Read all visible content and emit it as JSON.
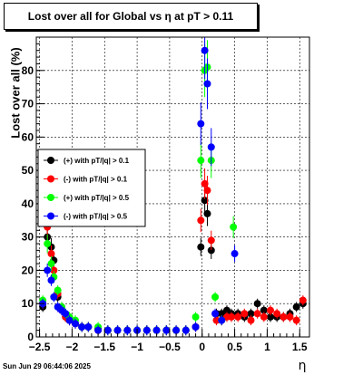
{
  "footer_timestamp": "Sun Jun 29 06:44:06 2025",
  "chart_data": {
    "type": "scatter",
    "title": "Lost over all for Global vs    η at pT > 0.11",
    "xlabel": "η",
    "ylabel": "Lost over all (%)",
    "xlim": [
      -2.55,
      1.65
    ],
    "ylim": [
      0,
      90
    ],
    "xticks": [
      -2.5,
      -2,
      -1.5,
      -1,
      -0.5,
      0,
      0.5,
      1,
      1.5
    ],
    "xtick_labels": [
      "−2.5",
      "−2",
      "−1.5",
      "−1",
      "−0.5",
      "0",
      "0.5",
      "1",
      "1.5"
    ],
    "yticks": [
      0,
      10,
      20,
      30,
      40,
      50,
      60,
      70,
      80
    ],
    "grid": true,
    "legend_position": "middle-left",
    "series": [
      {
        "name": "(+) with pT/|q| > 0.1",
        "color": "#000000",
        "points": [
          [
            -2.45,
            9
          ],
          [
            -2.38,
            30
          ],
          [
            -2.32,
            27
          ],
          [
            -2.28,
            23
          ],
          [
            -2.22,
            12
          ],
          [
            -2.16,
            9
          ],
          [
            -2.1,
            6
          ],
          [
            -2.04,
            5
          ],
          [
            -1.95,
            4
          ],
          [
            -1.85,
            3
          ],
          [
            -1.75,
            3
          ],
          [
            -1.6,
            2.5
          ],
          [
            -1.45,
            2
          ],
          [
            -1.3,
            2
          ],
          [
            -1.15,
            2
          ],
          [
            -1.0,
            2
          ],
          [
            -0.85,
            2
          ],
          [
            -0.7,
            2
          ],
          [
            -0.55,
            2
          ],
          [
            -0.4,
            2
          ],
          [
            -0.25,
            2
          ],
          [
            -0.1,
            3
          ],
          [
            -0.02,
            27
          ],
          [
            0.04,
            41
          ],
          [
            0.08,
            37
          ],
          [
            0.14,
            26
          ],
          [
            0.22,
            7
          ],
          [
            0.3,
            7
          ],
          [
            0.38,
            8
          ],
          [
            0.45,
            7
          ],
          [
            0.55,
            7
          ],
          [
            0.65,
            6
          ],
          [
            0.75,
            7
          ],
          [
            0.85,
            10
          ],
          [
            0.95,
            8
          ],
          [
            1.05,
            6
          ],
          [
            1.15,
            6
          ],
          [
            1.25,
            6
          ],
          [
            1.35,
            7
          ],
          [
            1.45,
            9
          ],
          [
            1.55,
            10
          ]
        ]
      },
      {
        "name": "(-) with pT/|q| > 0.1",
        "color": "#ff0000",
        "points": [
          [
            -2.45,
            10
          ],
          [
            -2.38,
            33
          ],
          [
            -2.32,
            25
          ],
          [
            -2.28,
            20
          ],
          [
            -2.22,
            13
          ],
          [
            -2.16,
            8
          ],
          [
            -2.1,
            6
          ],
          [
            -2.04,
            5
          ],
          [
            -1.95,
            4
          ],
          [
            -1.85,
            3
          ],
          [
            -1.75,
            3
          ],
          [
            -1.6,
            2
          ],
          [
            -1.45,
            2
          ],
          [
            -1.3,
            2
          ],
          [
            -1.15,
            2
          ],
          [
            -1.0,
            2
          ],
          [
            -0.85,
            2
          ],
          [
            -0.7,
            2
          ],
          [
            -0.55,
            2
          ],
          [
            -0.4,
            2
          ],
          [
            -0.25,
            2
          ],
          [
            -0.1,
            3
          ],
          [
            -0.02,
            35
          ],
          [
            0.04,
            46
          ],
          [
            0.08,
            44
          ],
          [
            0.14,
            29
          ],
          [
            0.22,
            5
          ],
          [
            0.3,
            5
          ],
          [
            0.38,
            6
          ],
          [
            0.45,
            6
          ],
          [
            0.55,
            6
          ],
          [
            0.65,
            7
          ],
          [
            0.75,
            5
          ],
          [
            0.85,
            7
          ],
          [
            0.95,
            6
          ],
          [
            1.05,
            8
          ],
          [
            1.15,
            7
          ],
          [
            1.25,
            6
          ],
          [
            1.35,
            6
          ],
          [
            1.45,
            5
          ],
          [
            1.55,
            11
          ]
        ]
      },
      {
        "name": "(+) with pT/|q| > 0.5",
        "color": "#00ff00",
        "points": [
          [
            -2.45,
            11
          ],
          [
            -2.38,
            28
          ],
          [
            -2.32,
            22
          ],
          [
            -2.28,
            18
          ],
          [
            -2.22,
            14
          ],
          [
            -2.16,
            9
          ],
          [
            -2.1,
            7
          ],
          [
            -2.04,
            6
          ],
          [
            -1.95,
            5
          ],
          [
            -1.85,
            3
          ],
          [
            -1.75,
            3
          ],
          [
            -1.6,
            3
          ],
          [
            -1.45,
            2
          ],
          [
            -1.3,
            2
          ],
          [
            -1.15,
            2
          ],
          [
            -1.0,
            2
          ],
          [
            -0.85,
            2
          ],
          [
            -0.7,
            2
          ],
          [
            -0.55,
            2
          ],
          [
            -0.4,
            2
          ],
          [
            -0.25,
            2
          ],
          [
            -0.1,
            6
          ],
          [
            -0.02,
            53
          ],
          [
            0.04,
            80
          ],
          [
            0.08,
            81
          ],
          [
            0.14,
            53
          ],
          [
            0.2,
            12
          ],
          [
            0.3,
            5
          ],
          [
            0.48,
            33
          ]
        ]
      },
      {
        "name": "(-) with pT/|q| > 0.5",
        "color": "#0000ff",
        "points": [
          [
            -2.45,
            10
          ],
          [
            -2.38,
            20
          ],
          [
            -2.32,
            17
          ],
          [
            -2.28,
            12
          ],
          [
            -2.22,
            9
          ],
          [
            -2.16,
            8
          ],
          [
            -2.1,
            7
          ],
          [
            -2.04,
            5
          ],
          [
            -1.95,
            4
          ],
          [
            -1.85,
            3
          ],
          [
            -1.75,
            3
          ],
          [
            -1.6,
            2
          ],
          [
            -1.45,
            2
          ],
          [
            -1.3,
            2
          ],
          [
            -1.15,
            2
          ],
          [
            -1.0,
            2
          ],
          [
            -0.85,
            2
          ],
          [
            -0.7,
            2
          ],
          [
            -0.55,
            2
          ],
          [
            -0.4,
            2
          ],
          [
            -0.25,
            2
          ],
          [
            -0.1,
            3
          ],
          [
            -0.02,
            64
          ],
          [
            0.04,
            86
          ],
          [
            0.08,
            76
          ],
          [
            0.14,
            57
          ],
          [
            0.2,
            7
          ],
          [
            0.3,
            5
          ],
          [
            0.5,
            25
          ]
        ]
      }
    ]
  }
}
